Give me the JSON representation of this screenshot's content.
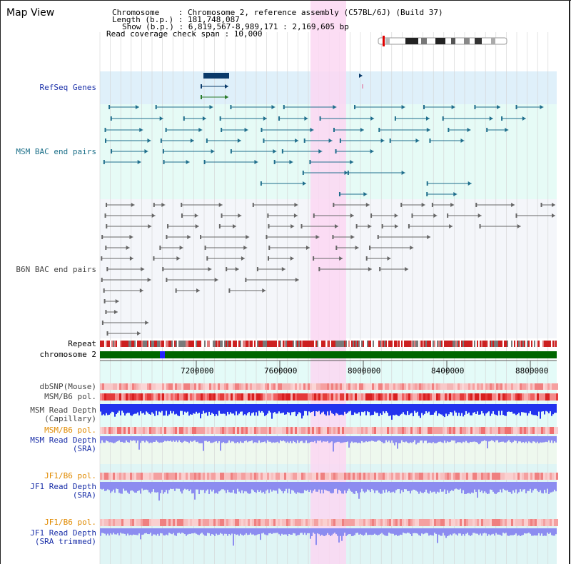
{
  "header": {
    "title": "Map View",
    "chromosome_line": "Chromosome    : Chromosome 2, reference assembly (C57BL/6J) (Build 37)",
    "length_line": "Length (b.p.) : 181,748,087",
    "show_line": "Show (b.p.) : 6,819,567-8,989,171 : 2,169,605 bp",
    "coverage_line": "Read coverage check span : 10,000"
  },
  "tracks": {
    "refseq": "RefSeq Genes",
    "msm_bac": "MSM BAC end pairs",
    "b6n_bac": "B6N BAC end pairs",
    "repeat": "Repeat",
    "chromosome": "chromosome 2",
    "dbsnp": "dbSNP(Mouse)",
    "msm_b6_pol": "MSM/B6 pol.",
    "msm_depth_cap": "MSM Read Depth\n(Capillary)",
    "msm_b6_pol_2": "MSM/B6 pol.",
    "msm_depth_sra": "MSM Read Depth\n(SRA)",
    "jf1_b6_pol": "JF1/B6 pol.",
    "jf1_depth_sra": "JF1 Read Depth\n(SRA)",
    "jf1_b6_pol_2": "JF1/B6 pol.",
    "jf1_depth_trim": "JF1 Read Depth\n(SRA trimmed)"
  },
  "axis": {
    "ticks": [
      "7200000",
      "7600000",
      "8000000",
      "8400000",
      "8800000"
    ]
  },
  "colors": {
    "refseq_bg": "#dff0fa",
    "msm_bg": "#e6fbf6",
    "b6n_bg": "#f4f6fa",
    "highlight": "#fbd7f2",
    "msm_feature": "#1f6e8c",
    "b6n_feature": "#666666",
    "refseq_feature": "#0a3a6a",
    "label_blue": "#1a2fa8",
    "label_teal": "#1a6e88",
    "label_orange": "#e08a00",
    "label_gray": "#444444",
    "chromosome_green": "#006600",
    "depth_blue": "#2233ee",
    "depth_light": "#8c8cf0"
  }
}
